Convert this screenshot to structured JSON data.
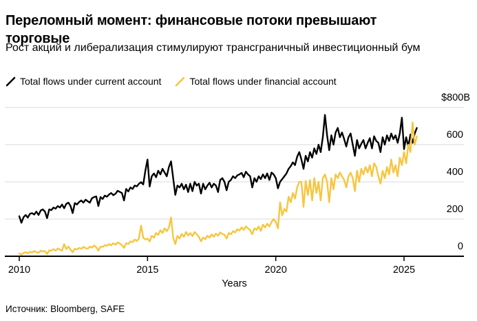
{
  "header": {
    "title": "Переломный момент: финансовые потоки превышают торговые",
    "subtitle": "Рост акций и либерализация стимулируют трансграничный инвестиционный бум"
  },
  "legend": [
    {
      "label": "Total flows under current account",
      "color": "#000000"
    },
    {
      "label": "Total flows under financial account",
      "color": "#F7C53F"
    }
  ],
  "source": "Источник: Bloomberg, SAFE",
  "chart_data": {
    "type": "line",
    "title": "Переломный момент: финансовые потоки превышают торговые",
    "xlabel": "Years",
    "ylabel": "$B",
    "ylim": [
      0,
      800
    ],
    "grid": "horizontal",
    "legend_position": "top",
    "axis_color": "#000000",
    "gridline_color": "#d9d9d9",
    "x_start_year": 2010,
    "x_frequency": "monthly",
    "x_ticks": [
      {
        "value": 2010,
        "label": "2010"
      },
      {
        "value": 2015,
        "label": "2015"
      },
      {
        "value": 2020,
        "label": "2020"
      },
      {
        "value": 2025,
        "label": "2025"
      }
    ],
    "y_ticks": [
      {
        "value": 800,
        "label": "$800B"
      },
      {
        "value": 600,
        "label": "600"
      },
      {
        "value": 400,
        "label": "400"
      },
      {
        "value": 200,
        "label": "200"
      },
      {
        "value": 0,
        "label": "0"
      }
    ],
    "series": [
      {
        "name": "Total flows under current account",
        "color": "#000000",
        "values": [
          215,
          180,
          210,
          222,
          208,
          228,
          232,
          224,
          240,
          222,
          246,
          252,
          240,
          205,
          252,
          248,
          262,
          256,
          270,
          262,
          278,
          258,
          282,
          288,
          270,
          232,
          286,
          278,
          292,
          300,
          288,
          304,
          296,
          288,
          312,
          318,
          322,
          270,
          318,
          308,
          326,
          320,
          332,
          340,
          328,
          336,
          352,
          346,
          340,
          300,
          362,
          348,
          370,
          362,
          380,
          376,
          390,
          398,
          386,
          460,
          520,
          375,
          430,
          445,
          425,
          460,
          440,
          470,
          450,
          430,
          480,
          510,
          420,
          330,
          380,
          370,
          390,
          360,
          385,
          345,
          390,
          350,
          400,
          380,
          390,
          337,
          390,
          360,
          380,
          395,
          370,
          390,
          380,
          345,
          410,
          420,
          400,
          355,
          400,
          410,
          430,
          420,
          435,
          440,
          448,
          425,
          455,
          440,
          430,
          370,
          420,
          400,
          430,
          415,
          440,
          420,
          445,
          410,
          450,
          440,
          420,
          365,
          400,
          415,
          430,
          445,
          470,
          485,
          505,
          490,
          535,
          560,
          520,
          470,
          540,
          510,
          560,
          530,
          580,
          550,
          600,
          560,
          640,
          760,
          650,
          570,
          650,
          600,
          665,
          690,
          640,
          665,
          630,
          590,
          640,
          660,
          600,
          540,
          625,
          580,
          605,
          625,
          580,
          610,
          635,
          580,
          645,
          620,
          610,
          560,
          640,
          600,
          650,
          620,
          660,
          630,
          650,
          610,
          660,
          745,
          576,
          640,
          590,
          655,
          610,
          660,
          690
        ]
      },
      {
        "name": "Total flows under financial account",
        "color": "#F7C53F",
        "values": [
          15,
          8,
          18,
          22,
          16,
          24,
          20,
          28,
          22,
          18,
          30,
          26,
          28,
          12,
          32,
          30,
          38,
          30,
          42,
          36,
          30,
          65,
          38,
          52,
          35,
          22,
          40,
          36,
          45,
          40,
          50,
          44,
          40,
          52,
          46,
          58,
          48,
          30,
          52,
          50,
          60,
          56,
          66,
          58,
          70,
          62,
          74,
          68,
          60,
          45,
          70,
          66,
          80,
          76,
          90,
          82,
          96,
          165,
          100,
          90,
          95,
          80,
          110,
          100,
          125,
          115,
          140,
          125,
          150,
          135,
          155,
          209,
          100,
          66,
          110,
          95,
          120,
          105,
          130,
          112,
          125,
          108,
          130,
          118,
          105,
          80,
          100,
          92,
          110,
          100,
          118,
          105,
          122,
          110,
          128,
          120,
          115,
          95,
          125,
          118,
          135,
          128,
          145,
          138,
          155,
          142,
          160,
          150,
          140,
          118,
          150,
          142,
          160,
          136,
          170,
          155,
          175,
          160,
          185,
          200,
          185,
          150,
          290,
          220,
          255,
          240,
          320,
          290,
          340,
          310,
          370,
          400,
          400,
          265,
          405,
          330,
          410,
          300,
          420,
          340,
          400,
          300,
          420,
          440,
          400,
          290,
          420,
          360,
          440,
          420,
          450,
          430,
          410,
          370,
          430,
          450,
          420,
          350,
          460,
          400,
          470,
          440,
          480,
          450,
          490,
          430,
          500,
          480,
          430,
          390,
          460,
          420,
          480,
          440,
          520,
          450,
          490,
          430,
          530,
          490,
          560,
          500,
          600,
          560,
          720,
          600,
          645
        ]
      }
    ]
  }
}
